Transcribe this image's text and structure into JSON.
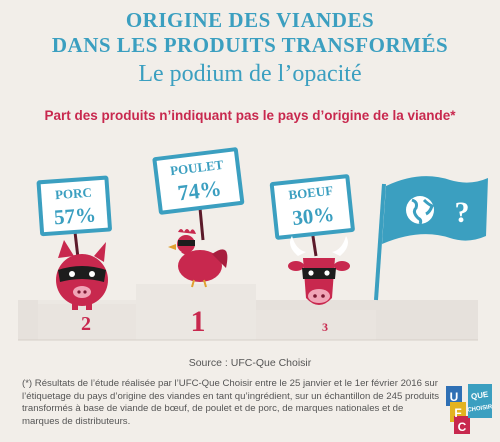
{
  "header": {
    "line1": "ORIGINE DES VIANDES",
    "line2": "DANS LES PRODUITS TRANSFORMÉS",
    "line3": "Le podium de l’opacité"
  },
  "chart_data": {
    "type": "bar",
    "title": "Part des produits n’indiquant pas le pays d’origine de la viande*",
    "categories": [
      "PORC",
      "POULET",
      "BOEUF"
    ],
    "values": [
      57,
      74,
      30
    ],
    "value_labels": [
      "57%",
      "74%",
      "30%"
    ],
    "ranks": [
      "2",
      "1",
      "3"
    ],
    "unit": "%"
  },
  "flag": {
    "symbol": "?"
  },
  "source": "Source : UFC-Que Choisir",
  "footnote": "(*) Résultats de l’étude réalisée par l’UFC-Que Choisir entre le 25 janvier et le 1er février 2016 sur l’étiquetage du pays d’origine des viandes en tant qu’ingrédient, sur un échantillon de 245 produits transformés à base de viande de bœuf, de poulet et de porc, de marques nationales et de marques de distributeurs.",
  "logo": {
    "letters": [
      "U",
      "F",
      "C"
    ],
    "text": "QUE CHOISIR"
  },
  "colors": {
    "blue": "#3b9fc0",
    "red": "#c8284e",
    "podium": "#e6e1dc"
  }
}
